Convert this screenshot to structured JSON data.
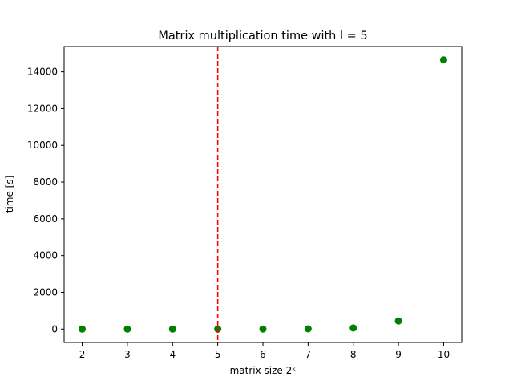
{
  "chart_data": {
    "type": "scatter",
    "title": "Matrix multiplication time with l = 5",
    "xlabel": "matrix size 2ᵏ",
    "ylabel": "time [s]",
    "x": [
      2,
      3,
      4,
      5,
      6,
      7,
      8,
      9,
      10
    ],
    "y": [
      0,
      0,
      0,
      1,
      3,
      12,
      60,
      440,
      14650
    ],
    "xlim": [
      1.6,
      10.4
    ],
    "ylim": [
      -730,
      15380
    ],
    "xticks": [
      "2",
      "3",
      "4",
      "5",
      "6",
      "7",
      "8",
      "9",
      "10"
    ],
    "yticks": [
      "0",
      "2000",
      "4000",
      "6000",
      "8000",
      "10000",
      "12000",
      "14000"
    ],
    "ytick_values": [
      0,
      2000,
      4000,
      6000,
      8000,
      10000,
      12000,
      14000
    ],
    "xtick_values": [
      2,
      3,
      4,
      5,
      6,
      7,
      8,
      9,
      10
    ],
    "marker_color": "#008000",
    "vline": {
      "x": 5,
      "color": "#ff0000",
      "style": "dashed"
    },
    "grid": false,
    "legend": "none"
  }
}
